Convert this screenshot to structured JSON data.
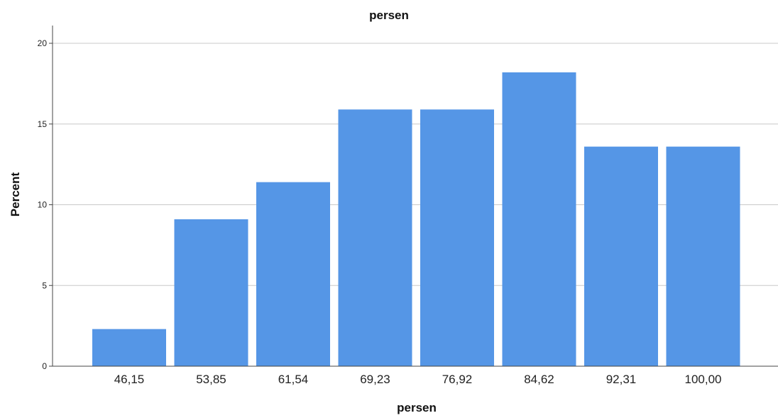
{
  "chart_data": {
    "type": "bar",
    "title": "persen",
    "xlabel": "persen",
    "ylabel": "Percent",
    "categories": [
      "46,15",
      "53,85",
      "61,54",
      "69,23",
      "76,92",
      "84,62",
      "92,31",
      "100,00"
    ],
    "values": [
      2.3,
      9.1,
      11.4,
      15.9,
      15.9,
      18.2,
      13.6,
      13.6
    ],
    "ylim": [
      0,
      21
    ],
    "yticks": [
      0,
      5,
      10,
      15,
      20
    ],
    "ytick_labels": [
      "0",
      "5",
      "10",
      "15",
      "20"
    ],
    "grid": true,
    "legend": "none",
    "bar_color": "#5596e6"
  }
}
